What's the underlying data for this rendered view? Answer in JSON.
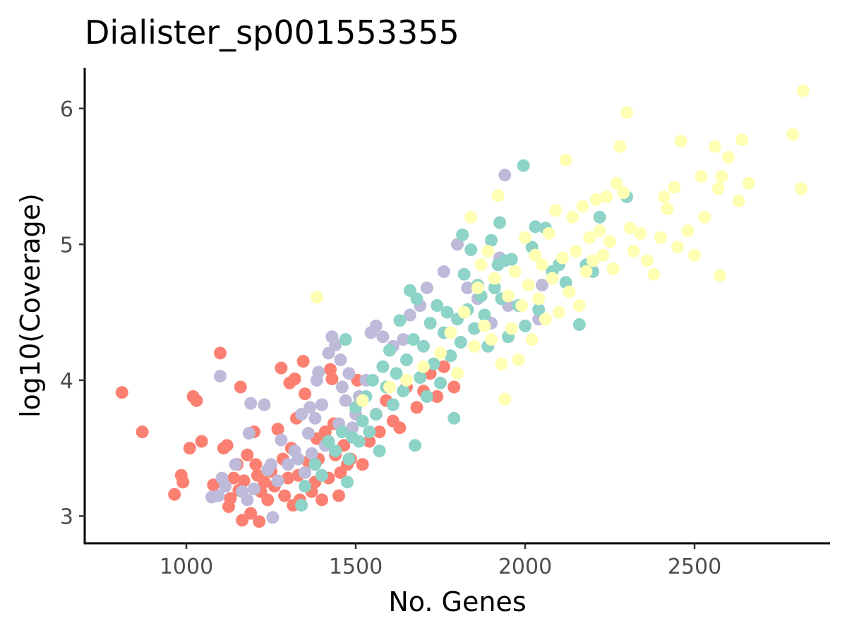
{
  "chart_data": {
    "type": "scatter",
    "title": "Dialister_sp001553355",
    "xlabel": "No. Genes",
    "ylabel": "log10(Coverage)",
    "xlim": [
      700,
      2900
    ],
    "ylim": [
      2.8,
      6.3
    ],
    "xticks": [
      1000,
      1500,
      2000,
      2500
    ],
    "yticks": [
      3,
      4,
      5,
      6
    ],
    "grid": false,
    "legend": "none",
    "series": [
      {
        "color": "#FB8072",
        "points": [
          [
            810,
            3.91
          ],
          [
            870,
            3.62
          ],
          [
            965,
            3.16
          ],
          [
            985,
            3.3
          ],
          [
            990,
            3.25
          ],
          [
            1010,
            3.5
          ],
          [
            1020,
            3.88
          ],
          [
            1030,
            3.85
          ],
          [
            1045,
            3.55
          ],
          [
            1080,
            3.23
          ],
          [
            1100,
            4.2
          ],
          [
            1110,
            3.5
          ],
          [
            1120,
            3.52
          ],
          [
            1125,
            3.07
          ],
          [
            1130,
            3.13
          ],
          [
            1140,
            3.28
          ],
          [
            1150,
            3.38
          ],
          [
            1155,
            3.19
          ],
          [
            1160,
            3.95
          ],
          [
            1165,
            2.97
          ],
          [
            1170,
            3.26
          ],
          [
            1180,
            3.45
          ],
          [
            1190,
            3.02
          ],
          [
            1200,
            3.62
          ],
          [
            1205,
            3.38
          ],
          [
            1210,
            3.3
          ],
          [
            1215,
            2.96
          ],
          [
            1220,
            3.18
          ],
          [
            1230,
            3.25
          ],
          [
            1240,
            3.12
          ],
          [
            1250,
            3.33
          ],
          [
            1260,
            3.22
          ],
          [
            1270,
            3.64
          ],
          [
            1280,
            4.09
          ],
          [
            1285,
            3.42
          ],
          [
            1290,
            3.15
          ],
          [
            1300,
            3.28
          ],
          [
            1305,
            3.98
          ],
          [
            1310,
            3.5
          ],
          [
            1315,
            3.08
          ],
          [
            1320,
            4.01
          ],
          [
            1325,
            3.72
          ],
          [
            1330,
            3.3
          ],
          [
            1335,
            3.12
          ],
          [
            1345,
            4.14
          ],
          [
            1350,
            3.9
          ],
          [
            1360,
            3.4
          ],
          [
            1370,
            3.18
          ],
          [
            1380,
            3.25
          ],
          [
            1385,
            3.57
          ],
          [
            1390,
            3.42
          ],
          [
            1400,
            3.12
          ],
          [
            1410,
            3.62
          ],
          [
            1420,
            3.28
          ],
          [
            1425,
            4.08
          ],
          [
            1430,
            4.01
          ],
          [
            1435,
            3.68
          ],
          [
            1440,
            3.45
          ],
          [
            1450,
            3.15
          ],
          [
            1455,
            3.32
          ],
          [
            1465,
            3.52
          ],
          [
            1475,
            3.38
          ],
          [
            1485,
            3.42
          ],
          [
            1505,
            4.0
          ],
          [
            1520,
            3.38
          ],
          [
            1540,
            3.55
          ],
          [
            1560,
            3.75
          ],
          [
            1570,
            3.62
          ],
          [
            1590,
            3.85
          ],
          [
            1610,
            3.7
          ],
          [
            1630,
            3.65
          ],
          [
            1650,
            3.95
          ],
          [
            1680,
            3.8
          ],
          [
            1700,
            3.92
          ],
          [
            1720,
            4.05
          ],
          [
            1740,
            3.88
          ],
          [
            1760,
            4.1
          ],
          [
            1790,
            3.95
          ]
        ]
      },
      {
        "color": "#BEBADA",
        "points": [
          [
            1075,
            3.14
          ],
          [
            1095,
            3.15
          ],
          [
            1100,
            4.03
          ],
          [
            1105,
            3.28
          ],
          [
            1115,
            3.22
          ],
          [
            1145,
            3.38
          ],
          [
            1165,
            3.18
          ],
          [
            1180,
            3.12
          ],
          [
            1185,
            3.61
          ],
          [
            1190,
            3.83
          ],
          [
            1200,
            3.2
          ],
          [
            1230,
            3.82
          ],
          [
            1240,
            3.34
          ],
          [
            1250,
            3.38
          ],
          [
            1255,
            2.99
          ],
          [
            1270,
            3.26
          ],
          [
            1280,
            3.56
          ],
          [
            1300,
            3.38
          ],
          [
            1320,
            3.48
          ],
          [
            1330,
            3.42
          ],
          [
            1340,
            3.75
          ],
          [
            1350,
            3.32
          ],
          [
            1360,
            3.61
          ],
          [
            1365,
            3.8
          ],
          [
            1370,
            3.46
          ],
          [
            1380,
            3.72
          ],
          [
            1385,
            4.0
          ],
          [
            1390,
            4.06
          ],
          [
            1400,
            3.82
          ],
          [
            1410,
            3.52
          ],
          [
            1420,
            4.2
          ],
          [
            1430,
            4.32
          ],
          [
            1440,
            4.26
          ],
          [
            1450,
            3.68
          ],
          [
            1455,
            4.15
          ],
          [
            1460,
            3.95
          ],
          [
            1470,
            3.85
          ],
          [
            1480,
            4.05
          ],
          [
            1490,
            3.65
          ],
          [
            1500,
            3.75
          ],
          [
            1510,
            3.88
          ],
          [
            1530,
            4.0
          ],
          [
            1545,
            4.35
          ],
          [
            1560,
            4.4
          ],
          [
            1580,
            4.32
          ],
          [
            1610,
            4.25
          ],
          [
            1640,
            4.3
          ],
          [
            1660,
            4.48
          ],
          [
            1690,
            4.55
          ],
          [
            1710,
            4.68
          ],
          [
            1760,
            4.8
          ],
          [
            1800,
            5.0
          ],
          [
            1830,
            4.68
          ],
          [
            1860,
            4.6
          ],
          [
            1900,
            4.42
          ],
          [
            1925,
            4.9
          ],
          [
            1940,
            5.51
          ],
          [
            1950,
            4.55
          ],
          [
            2040,
            4.45
          ],
          [
            2050,
            4.7
          ]
        ]
      },
      {
        "color": "#8DD3C7",
        "points": [
          [
            1340,
            3.08
          ],
          [
            1350,
            3.22
          ],
          [
            1380,
            3.38
          ],
          [
            1400,
            3.3
          ],
          [
            1420,
            3.55
          ],
          [
            1440,
            3.48
          ],
          [
            1460,
            3.62
          ],
          [
            1470,
            4.3
          ],
          [
            1475,
            3.25
          ],
          [
            1480,
            3.42
          ],
          [
            1490,
            3.58
          ],
          [
            1500,
            3.8
          ],
          [
            1510,
            3.55
          ],
          [
            1520,
            3.7
          ],
          [
            1530,
            3.88
          ],
          [
            1540,
            3.62
          ],
          [
            1550,
            4.0
          ],
          [
            1560,
            3.75
          ],
          [
            1570,
            3.48
          ],
          [
            1580,
            4.1
          ],
          [
            1590,
            3.95
          ],
          [
            1600,
            4.22
          ],
          [
            1610,
            3.82
          ],
          [
            1620,
            4.05
          ],
          [
            1630,
            4.44
          ],
          [
            1640,
            3.92
          ],
          [
            1650,
            4.15
          ],
          [
            1660,
            4.66
          ],
          [
            1670,
            4.3
          ],
          [
            1675,
            3.52
          ],
          [
            1680,
            4.6
          ],
          [
            1690,
            4.02
          ],
          [
            1700,
            4.25
          ],
          [
            1710,
            3.88
          ],
          [
            1720,
            4.42
          ],
          [
            1730,
            4.12
          ],
          [
            1740,
            4.55
          ],
          [
            1750,
            3.98
          ],
          [
            1760,
            4.35
          ],
          [
            1770,
            4.5
          ],
          [
            1780,
            4.18
          ],
          [
            1790,
            3.72
          ],
          [
            1800,
            4.45
          ],
          [
            1810,
            4.28
          ],
          [
            1815,
            5.07
          ],
          [
            1820,
            4.78
          ],
          [
            1830,
            4.52
          ],
          [
            1840,
            4.96
          ],
          [
            1850,
            4.38
          ],
          [
            1860,
            4.7
          ],
          [
            1870,
            4.62
          ],
          [
            1880,
            4.48
          ],
          [
            1890,
            4.25
          ],
          [
            1900,
            5.03
          ],
          [
            1910,
            4.68
          ],
          [
            1920,
            4.85
          ],
          [
            1925,
            5.16
          ],
          [
            1930,
            4.6
          ],
          [
            1940,
            4.88
          ],
          [
            1950,
            4.32
          ],
          [
            1960,
            4.89
          ],
          [
            1980,
            4.55
          ],
          [
            1995,
            5.58
          ],
          [
            2000,
            4.4
          ],
          [
            2020,
            4.98
          ],
          [
            2030,
            5.13
          ],
          [
            2040,
            4.52
          ],
          [
            2060,
            5.12
          ],
          [
            2080,
            4.8
          ],
          [
            2100,
            4.85
          ],
          [
            2120,
            4.72
          ],
          [
            2160,
            4.41
          ],
          [
            2180,
            4.85
          ],
          [
            2200,
            4.8
          ],
          [
            2220,
            5.2
          ],
          [
            2300,
            5.35
          ]
        ]
      },
      {
        "color": "#FFFFB3",
        "points": [
          [
            1385,
            4.61
          ],
          [
            1520,
            3.85
          ],
          [
            1600,
            3.95
          ],
          [
            1650,
            4.0
          ],
          [
            1700,
            4.1
          ],
          [
            1750,
            4.2
          ],
          [
            1780,
            4.35
          ],
          [
            1800,
            4.05
          ],
          [
            1820,
            4.5
          ],
          [
            1840,
            5.2
          ],
          [
            1850,
            4.25
          ],
          [
            1860,
            4.68
          ],
          [
            1870,
            4.85
          ],
          [
            1880,
            4.4
          ],
          [
            1890,
            4.95
          ],
          [
            1900,
            4.3
          ],
          [
            1910,
            4.75
          ],
          [
            1920,
            5.36
          ],
          [
            1930,
            4.12
          ],
          [
            1940,
            3.86
          ],
          [
            1950,
            4.62
          ],
          [
            1960,
            4.38
          ],
          [
            1970,
            4.8
          ],
          [
            1980,
            4.15
          ],
          [
            1990,
            4.55
          ],
          [
            2000,
            5.05
          ],
          [
            2010,
            4.7
          ],
          [
            2020,
            4.3
          ],
          [
            2030,
            4.92
          ],
          [
            2040,
            4.6
          ],
          [
            2050,
            4.85
          ],
          [
            2060,
            4.45
          ],
          [
            2070,
            5.08
          ],
          [
            2080,
            4.75
          ],
          [
            2090,
            5.25
          ],
          [
            2100,
            4.5
          ],
          [
            2110,
            4.9
          ],
          [
            2120,
            5.62
          ],
          [
            2130,
            4.65
          ],
          [
            2140,
            5.2
          ],
          [
            2150,
            4.95
          ],
          [
            2160,
            4.55
          ],
          [
            2170,
            5.28
          ],
          [
            2180,
            4.8
          ],
          [
            2190,
            5.05
          ],
          [
            2200,
            4.88
          ],
          [
            2210,
            5.33
          ],
          [
            2220,
            5.1
          ],
          [
            2230,
            4.92
          ],
          [
            2240,
            5.35
          ],
          [
            2250,
            5.02
          ],
          [
            2260,
            4.82
          ],
          [
            2270,
            5.45
          ],
          [
            2280,
            5.72
          ],
          [
            2290,
            5.38
          ],
          [
            2300,
            5.97
          ],
          [
            2310,
            5.12
          ],
          [
            2320,
            4.95
          ],
          [
            2340,
            5.08
          ],
          [
            2360,
            4.88
          ],
          [
            2380,
            4.78
          ],
          [
            2400,
            5.05
          ],
          [
            2410,
            5.35
          ],
          [
            2420,
            5.26
          ],
          [
            2440,
            5.42
          ],
          [
            2450,
            4.98
          ],
          [
            2460,
            5.76
          ],
          [
            2480,
            5.1
          ],
          [
            2500,
            4.92
          ],
          [
            2520,
            5.5
          ],
          [
            2530,
            5.2
          ],
          [
            2560,
            5.72
          ],
          [
            2570,
            5.41
          ],
          [
            2575,
            4.77
          ],
          [
            2580,
            5.5
          ],
          [
            2600,
            5.64
          ],
          [
            2630,
            5.32
          ],
          [
            2640,
            5.77
          ],
          [
            2660,
            5.45
          ],
          [
            2790,
            5.81
          ],
          [
            2815,
            5.41
          ],
          [
            2820,
            6.13
          ]
        ]
      }
    ]
  }
}
